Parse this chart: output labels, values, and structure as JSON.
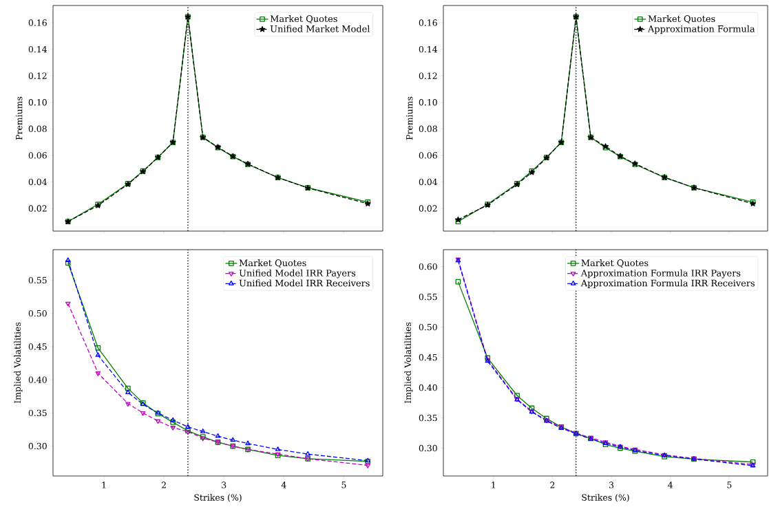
{
  "chart_data": [
    {
      "type": "line",
      "ylabel": "Premiums",
      "x": [
        0.4,
        0.9,
        1.4,
        1.65,
        1.9,
        2.15,
        2.4,
        2.65,
        2.9,
        3.15,
        3.4,
        3.9,
        4.4,
        5.4
      ],
      "xlim": [
        0.15,
        5.65
      ],
      "xticks": [
        1,
        2,
        3,
        4,
        5
      ],
      "ylim": [
        0.0029,
        0.173
      ],
      "yticks": [
        0.02,
        0.04,
        0.06,
        0.08,
        {
          "value": 0.1,
          "label": "0.10"
        },
        0.12,
        0.14,
        0.16
      ],
      "tick_labels": "y",
      "legend": "top right",
      "ref_lines": [
        {
          "axis": "x",
          "value": 2.4,
          "color": "#000000",
          "line_style": "dotted"
        }
      ],
      "series": [
        {
          "name": "Market Quotes",
          "color": "#008000",
          "marker": "square",
          "line_style": "solid",
          "values": [
            0.0101,
            0.0231,
            0.0387,
            0.0482,
            0.0585,
            0.0698,
            0.1645,
            0.0736,
            0.0658,
            0.0591,
            0.0532,
            0.0433,
            0.0356,
            0.0248
          ]
        },
        {
          "name": "Unified Market Model",
          "color": "#000000",
          "marker": "star",
          "line_style": "dashed",
          "values": [
            0.0101,
            0.0222,
            0.0382,
            0.0478,
            0.0585,
            0.0698,
            0.1645,
            0.0736,
            0.0662,
            0.0593,
            0.0535,
            0.0433,
            0.0354,
            0.0236
          ]
        }
      ]
    },
    {
      "type": "line",
      "ylabel": "Premiums",
      "x": [
        0.4,
        0.9,
        1.4,
        1.65,
        1.9,
        2.15,
        2.4,
        2.65,
        2.9,
        3.15,
        3.4,
        3.9,
        4.4,
        5.4
      ],
      "xlim": [
        0.15,
        5.65
      ],
      "xticks": [
        1,
        2,
        3,
        4,
        5
      ],
      "ylim": [
        0.0029,
        0.173
      ],
      "yticks": [
        0.02,
        0.04,
        0.06,
        0.08,
        {
          "value": 0.1,
          "label": "0.10"
        },
        0.12,
        0.14,
        0.16
      ],
      "tick_labels": "y",
      "legend": "top right",
      "ref_lines": [
        {
          "axis": "x",
          "value": 2.4,
          "color": "#000000",
          "line_style": "dotted"
        }
      ],
      "series": [
        {
          "name": "Market Quotes",
          "color": "#008000",
          "marker": "square",
          "line_style": "solid",
          "values": [
            0.0101,
            0.0231,
            0.0387,
            0.0482,
            0.0585,
            0.0698,
            0.1645,
            0.0736,
            0.0658,
            0.0591,
            0.0532,
            0.0433,
            0.0356,
            0.0248
          ]
        },
        {
          "name": "Approximation Formula",
          "color": "#000000",
          "marker": "star",
          "line_style": "dashed",
          "values": [
            0.0115,
            0.0226,
            0.0381,
            0.0472,
            0.0582,
            0.0698,
            0.1645,
            0.0736,
            0.0667,
            0.0594,
            0.0537,
            0.0435,
            0.0356,
            0.0236
          ]
        }
      ]
    },
    {
      "type": "line",
      "xlabel": "Strikes (%)",
      "ylabel": "Implied Volatilities",
      "x": [
        0.4,
        0.9,
        1.4,
        1.65,
        1.9,
        2.15,
        2.4,
        2.65,
        2.9,
        3.15,
        3.4,
        3.9,
        4.4,
        5.4
      ],
      "xlim": [
        0.15,
        5.65
      ],
      "xticks": [
        1,
        2,
        3,
        4,
        5
      ],
      "ylim": [
        0.255,
        0.596
      ],
      "yticks": [
        {
          "value": 0.3,
          "label": "0.30"
        },
        0.35,
        {
          "value": 0.4,
          "label": "0.40"
        },
        0.45,
        {
          "value": 0.5,
          "label": "0.50"
        },
        0.55
      ],
      "legend": "top right",
      "ref_lines": [
        {
          "axis": "x",
          "value": 2.4,
          "color": "#000000",
          "line_style": "dotted"
        }
      ],
      "series": [
        {
          "name": "Market Quotes",
          "color": "#008000",
          "marker": "square",
          "line_style": "solid",
          "values": [
            0.576,
            0.448,
            0.387,
            0.365,
            0.349,
            0.336,
            0.323,
            0.314,
            0.306,
            0.3,
            0.295,
            0.286,
            0.281,
            0.277
          ]
        },
        {
          "name": "Unified Model IRR Payers",
          "color": "#bf00bf",
          "marker": "triangle_down",
          "line_style": "dashed",
          "values": [
            0.515,
            0.41,
            0.364,
            0.35,
            0.338,
            0.328,
            0.322,
            0.312,
            0.306,
            0.3,
            0.295,
            0.288,
            0.281,
            0.271
          ]
        },
        {
          "name": "Unified Model IRR Receivers",
          "color": "#0000ff",
          "marker": "triangle",
          "line_style": "dashed",
          "values": [
            0.58,
            0.437,
            0.381,
            0.363,
            0.35,
            0.339,
            0.329,
            0.322,
            0.315,
            0.309,
            0.304,
            0.295,
            0.288,
            0.278
          ]
        }
      ]
    },
    {
      "type": "line",
      "xlabel": "Strikes (%)",
      "ylabel": "Implied Volatilities",
      "x": [
        0.4,
        0.9,
        1.4,
        1.65,
        1.9,
        2.15,
        2.4,
        2.65,
        2.9,
        3.15,
        3.4,
        3.9,
        4.4,
        5.4
      ],
      "xlim": [
        0.15,
        5.65
      ],
      "xticks": [
        1,
        2,
        3,
        4,
        5
      ],
      "ylim": [
        0.254,
        0.628
      ],
      "yticks": [
        {
          "value": 0.3,
          "label": "0.30"
        },
        0.35,
        {
          "value": 0.4,
          "label": "0.40"
        },
        0.45,
        {
          "value": 0.5,
          "label": "0.50"
        },
        0.55,
        {
          "value": 0.6,
          "label": "0.60"
        }
      ],
      "legend": "top right",
      "ref_lines": [
        {
          "axis": "x",
          "value": 2.4,
          "color": "#000000",
          "line_style": "dotted"
        }
      ],
      "series": [
        {
          "name": "Market Quotes",
          "color": "#008000",
          "marker": "square",
          "line_style": "solid",
          "values": [
            0.575,
            0.449,
            0.387,
            0.366,
            0.349,
            0.335,
            0.324,
            0.316,
            0.306,
            0.3,
            0.295,
            0.286,
            0.282,
            0.277
          ]
        },
        {
          "name": "Approximation Formula IRR Payers",
          "color": "#bf00bf",
          "marker": "triangle_down",
          "line_style": "dashed",
          "values": [
            0.612,
            0.446,
            0.381,
            0.361,
            0.346,
            0.335,
            0.325,
            0.317,
            0.31,
            0.303,
            0.298,
            0.289,
            0.283,
            0.273
          ]
        },
        {
          "name": "Approximation Formula IRR Receivers",
          "color": "#0000ff",
          "marker": "triangle",
          "line_style": "dashed",
          "values": [
            0.61,
            0.444,
            0.38,
            0.36,
            0.345,
            0.333,
            0.324,
            0.315,
            0.308,
            0.302,
            0.296,
            0.288,
            0.282,
            0.271
          ]
        }
      ]
    }
  ]
}
